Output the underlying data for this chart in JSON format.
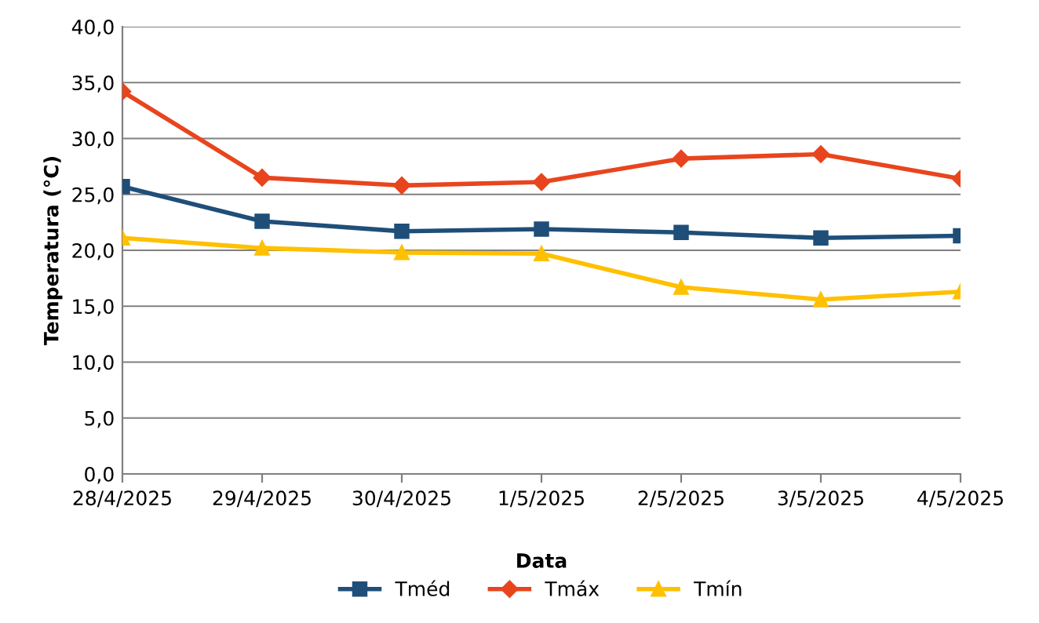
{
  "chart_data": {
    "type": "line",
    "xlabel": "Data",
    "ylabel": "Temperatura (°C)",
    "categories": [
      "28/4/2025",
      "29/4/2025",
      "30/4/2025",
      "1/5/2025",
      "2/5/2025",
      "3/5/2025",
      "4/5/2025"
    ],
    "series": [
      {
        "name": "Tméd",
        "color": "#1f4e79",
        "marker": "square",
        "values": [
          25.7,
          22.6,
          21.7,
          21.9,
          21.6,
          21.1,
          21.3
        ]
      },
      {
        "name": "Tmáx",
        "color": "#e8451e",
        "marker": "diamond",
        "values": [
          34.2,
          26.5,
          25.8,
          26.1,
          28.2,
          28.6,
          26.4
        ]
      },
      {
        "name": "Tmín",
        "color": "#ffc000",
        "marker": "triangle",
        "values": [
          21.1,
          20.2,
          19.8,
          19.7,
          16.7,
          15.6,
          16.3
        ]
      }
    ],
    "ylim": [
      0,
      40
    ],
    "yticks": [
      {
        "value": 0,
        "label": "0,0"
      },
      {
        "value": 5,
        "label": "5,0"
      },
      {
        "value": 10,
        "label": "10,0"
      },
      {
        "value": 15,
        "label": "15,0"
      },
      {
        "value": 20,
        "label": "20,0"
      },
      {
        "value": 25,
        "label": "25,0"
      },
      {
        "value": 30,
        "label": "30,0"
      },
      {
        "value": 35,
        "label": "35,0"
      },
      {
        "value": 40,
        "label": "40,0"
      }
    ],
    "grid": "y",
    "legend": "bottom",
    "line_style": "solid"
  }
}
